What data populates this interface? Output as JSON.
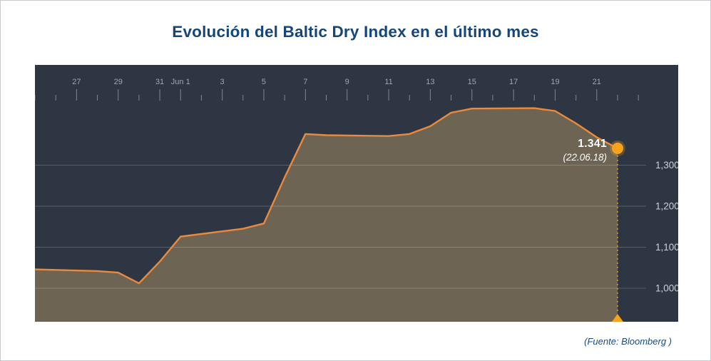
{
  "page": {
    "title": "Evolución del Baltic Dry Index en el último mes",
    "source_note": "(Fuente: Bloomberg )"
  },
  "annotation": {
    "value_label": "1.341",
    "date_label": "(22.06.18)"
  },
  "chart_data": {
    "type": "area",
    "title": "Evolución del Baltic Dry Index en el último mes",
    "series_name": "Baltic Dry Index",
    "x_unit": "calendar day offset (day 0 = 25 May 2018)",
    "x": [
      0,
      3,
      4,
      5,
      6,
      7,
      10,
      11,
      12,
      13,
      14,
      17,
      18,
      19,
      20,
      21,
      24,
      25,
      26,
      27,
      28
    ],
    "values": [
      1046,
      1042,
      1038,
      1012,
      1065,
      1126,
      1145,
      1158,
      1270,
      1376,
      1373,
      1371,
      1376,
      1395,
      1428,
      1438,
      1439,
      1432,
      1402,
      1368,
      1341
    ],
    "x_ticks": [
      {
        "label": "27",
        "day": 2
      },
      {
        "label": "29",
        "day": 4
      },
      {
        "label": "31",
        "day": 6
      },
      {
        "label": "Jun 1",
        "day": 7
      },
      {
        "label": "3",
        "day": 9
      },
      {
        "label": "5",
        "day": 11
      },
      {
        "label": "7",
        "day": 13
      },
      {
        "label": "9",
        "day": 15
      },
      {
        "label": "11",
        "day": 17
      },
      {
        "label": "13",
        "day": 19
      },
      {
        "label": "15",
        "day": 21
      },
      {
        "label": "17",
        "day": 23
      },
      {
        "label": "19",
        "day": 25
      },
      {
        "label": "21",
        "day": 27
      }
    ],
    "y_ticks": [
      {
        "label": "1,300",
        "value": 1300
      },
      {
        "label": "1,200",
        "value": 1200
      },
      {
        "label": "1,100",
        "value": 1100
      },
      {
        "label": "1,000",
        "value": 1000
      }
    ],
    "ylim": [
      918,
      1545
    ],
    "xlim": [
      0,
      29.4
    ],
    "grid": true,
    "legend": false,
    "last_point": {
      "value": 1341,
      "date": "22.06.18"
    },
    "colors": {
      "panel": "#2e3644",
      "line": "#e98a3c",
      "fill": "rgba(164,139,97,0.55)",
      "marker": "#f7a21c",
      "grid": "rgba(255,255,255,0.20)",
      "tick": "#7f8692",
      "tick_label": "#a0a6b0",
      "y_label": "#ccd0d8",
      "title": "#164679",
      "source": "#1b4a80",
      "annotation": "#ffffff"
    }
  }
}
